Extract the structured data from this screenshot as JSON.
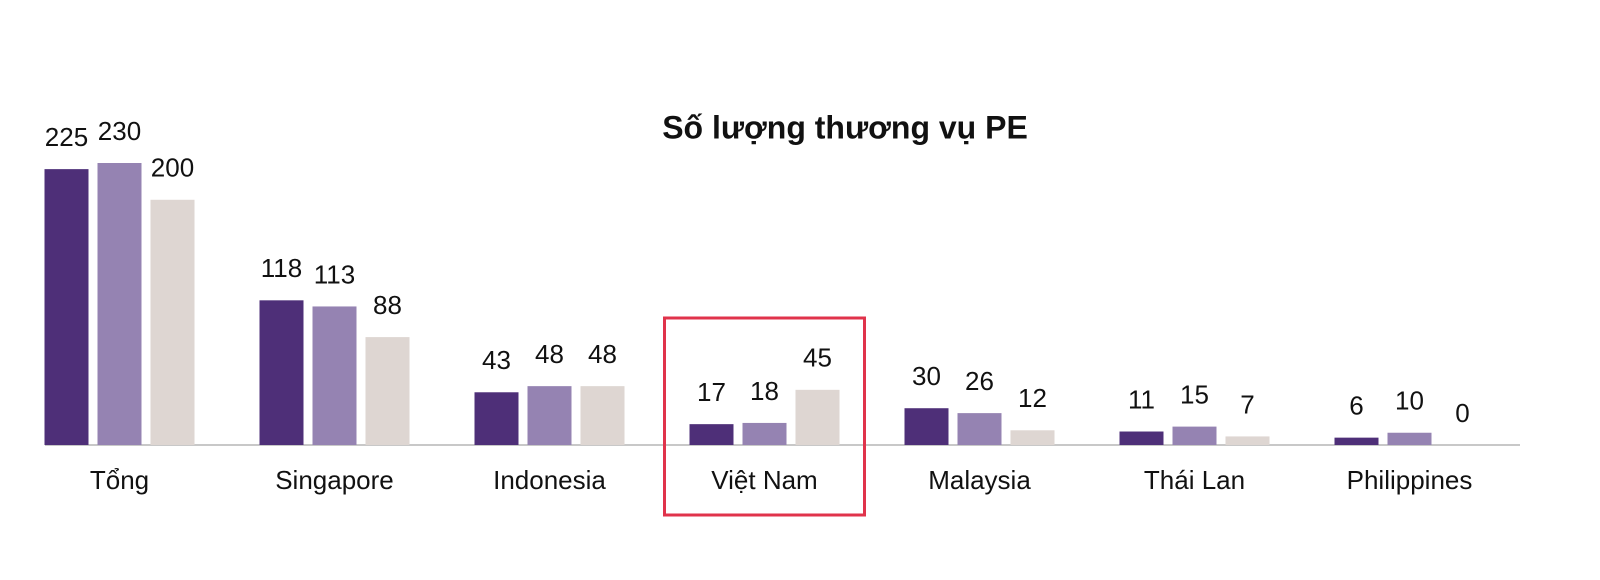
{
  "chart_data": {
    "type": "bar",
    "title": "Số lượng thương vụ PE",
    "categories": [
      "Tổng",
      "Singapore",
      "Indonesia",
      "Việt Nam",
      "Malaysia",
      "Thái Lan",
      "Philippines"
    ],
    "series": [
      {
        "color": "#4e2f78",
        "values": [
          225,
          118,
          43,
          17,
          30,
          11,
          6
        ]
      },
      {
        "color": "#9583b2",
        "values": [
          230,
          113,
          48,
          18,
          26,
          15,
          10
        ]
      },
      {
        "color": "#ded6d2",
        "values": [
          200,
          88,
          48,
          45,
          12,
          7,
          0
        ]
      }
    ],
    "highlight": "Việt Nam"
  }
}
